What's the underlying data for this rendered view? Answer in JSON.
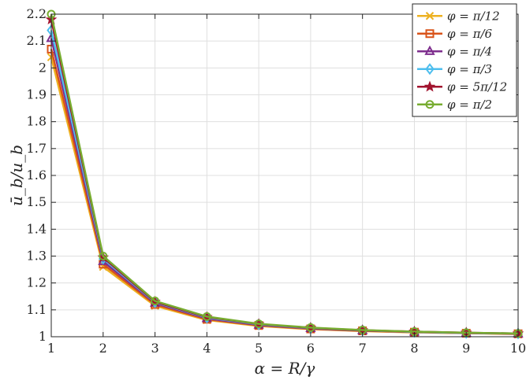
{
  "chart_data": {
    "type": "line",
    "xlabel": "α = R/γ",
    "ylabel": "ū_b/u_b",
    "x": [
      1,
      2,
      3,
      4,
      5,
      6,
      7,
      8,
      9,
      10
    ],
    "xlim": [
      1,
      10
    ],
    "ylim": [
      1,
      2.2
    ],
    "xticks": [
      1,
      2,
      3,
      4,
      5,
      6,
      7,
      8,
      9,
      10
    ],
    "yticks": [
      1,
      1.1,
      1.2,
      1.3,
      1.4,
      1.5,
      1.6,
      1.7,
      1.8,
      1.9,
      2,
      2.1,
      2.2
    ],
    "grid": true,
    "legend_position": "top-right",
    "series": [
      {
        "name": "φ = π/12",
        "marker": "x",
        "color": "#EDB120",
        "values": [
          2.04,
          1.26,
          1.115,
          1.062,
          1.04,
          1.028,
          1.021,
          1.016,
          1.013,
          1.01
        ]
      },
      {
        "name": "φ = π/6",
        "marker": "square",
        "color": "#D95319",
        "values": [
          2.07,
          1.27,
          1.12,
          1.065,
          1.042,
          1.029,
          1.022,
          1.017,
          1.013,
          1.011
        ]
      },
      {
        "name": "φ = π/4",
        "marker": "triangle",
        "color": "#7E2F8E",
        "values": [
          2.11,
          1.28,
          1.125,
          1.068,
          1.044,
          1.031,
          1.023,
          1.018,
          1.014,
          1.011
        ]
      },
      {
        "name": "φ = π/3",
        "marker": "diamond",
        "color": "#4DBEEE",
        "values": [
          2.14,
          1.29,
          1.128,
          1.071,
          1.046,
          1.032,
          1.024,
          1.018,
          1.014,
          1.012
        ]
      },
      {
        "name": "φ = 5π/12",
        "marker": "star",
        "color": "#A2142F",
        "values": [
          2.18,
          1.295,
          1.13,
          1.073,
          1.047,
          1.033,
          1.024,
          1.019,
          1.015,
          1.012
        ]
      },
      {
        "name": "φ = π/2",
        "marker": "circle",
        "color": "#77AC30",
        "values": [
          2.2,
          1.3,
          1.133,
          1.075,
          1.048,
          1.034,
          1.025,
          1.019,
          1.015,
          1.012
        ]
      }
    ]
  }
}
